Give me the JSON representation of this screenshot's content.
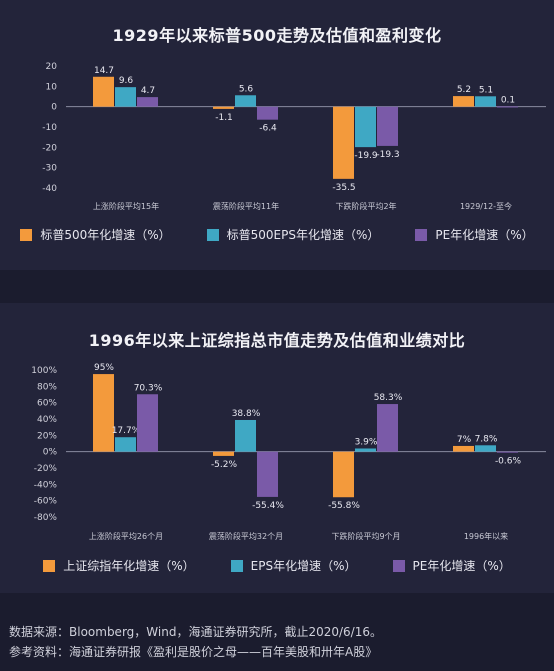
{
  "colors": {
    "orange": "#f39a3c",
    "teal": "#3fa8c4",
    "purple": "#7a5aa8"
  },
  "chart_data": [
    {
      "type": "bar",
      "title": "1929年以来标普500走势及估值和盈利变化",
      "categories": [
        "上涨阶段平均15年",
        "震荡阶段平均11年",
        "下跌阶段平均2年",
        "1929/12-至今"
      ],
      "yticks": [
        "20",
        "10",
        "0",
        "-10",
        "-20",
        "-30",
        "-40"
      ],
      "ylim": [
        -40,
        20
      ],
      "grid": false,
      "legend_position": "bottom",
      "series": [
        {
          "name": "标普500年化增速（%）",
          "values": [
            14.7,
            -1.1,
            -35.5,
            5.2
          ],
          "labels": [
            "14.7",
            "-1.1",
            "-35.5",
            "5.2"
          ]
        },
        {
          "name": "标普500EPS年化增速（%）",
          "values": [
            9.6,
            5.6,
            -19.9,
            5.1
          ],
          "labels": [
            "9.6",
            "5.6",
            "-19.9",
            "5.1"
          ]
        },
        {
          "name": "PE年化增速（%）",
          "values": [
            4.7,
            -6.4,
            -19.3,
            0.1
          ],
          "labels": [
            "4.7",
            "-6.4",
            "-19.3",
            "0.1"
          ]
        }
      ]
    },
    {
      "type": "bar",
      "title": "1996年以来上证综指总市值走势及估值和业绩对比",
      "categories": [
        "上涨阶段平均26个月",
        "震荡阶段平均32个月",
        "下跌阶段平均9个月",
        "1996年以来"
      ],
      "yticks": [
        "100%",
        "80%",
        "60%",
        "40%",
        "20%",
        "0%",
        "-20%",
        "-40%",
        "-60%",
        "-80%"
      ],
      "ylim": [
        -80,
        100
      ],
      "grid": false,
      "legend_position": "bottom",
      "series": [
        {
          "name": "上证综指年化增速（%）",
          "values": [
            95,
            -5.2,
            -55.8,
            7
          ],
          "labels": [
            "95%",
            "-5.2%",
            "-55.8%",
            "7%"
          ]
        },
        {
          "name": "EPS年化增速（%）",
          "values": [
            17.7,
            38.8,
            3.9,
            7.8
          ],
          "labels": [
            "17.7%",
            "38.8%",
            "3.9%",
            "7.8%"
          ]
        },
        {
          "name": "PE年化增速（%）",
          "values": [
            70.3,
            -55.4,
            58.3,
            -0.6
          ],
          "labels": [
            "70.3%",
            "-55.4%",
            "58.3%",
            "-0.6%"
          ]
        }
      ]
    }
  ],
  "footer": {
    "source": "数据来源：Bloomberg，Wind，海通证券研究所，截止2020/6/16。",
    "reference": "参考资料：海通证券研报《盈利是股价之母——百年美股和卅年A股》"
  }
}
